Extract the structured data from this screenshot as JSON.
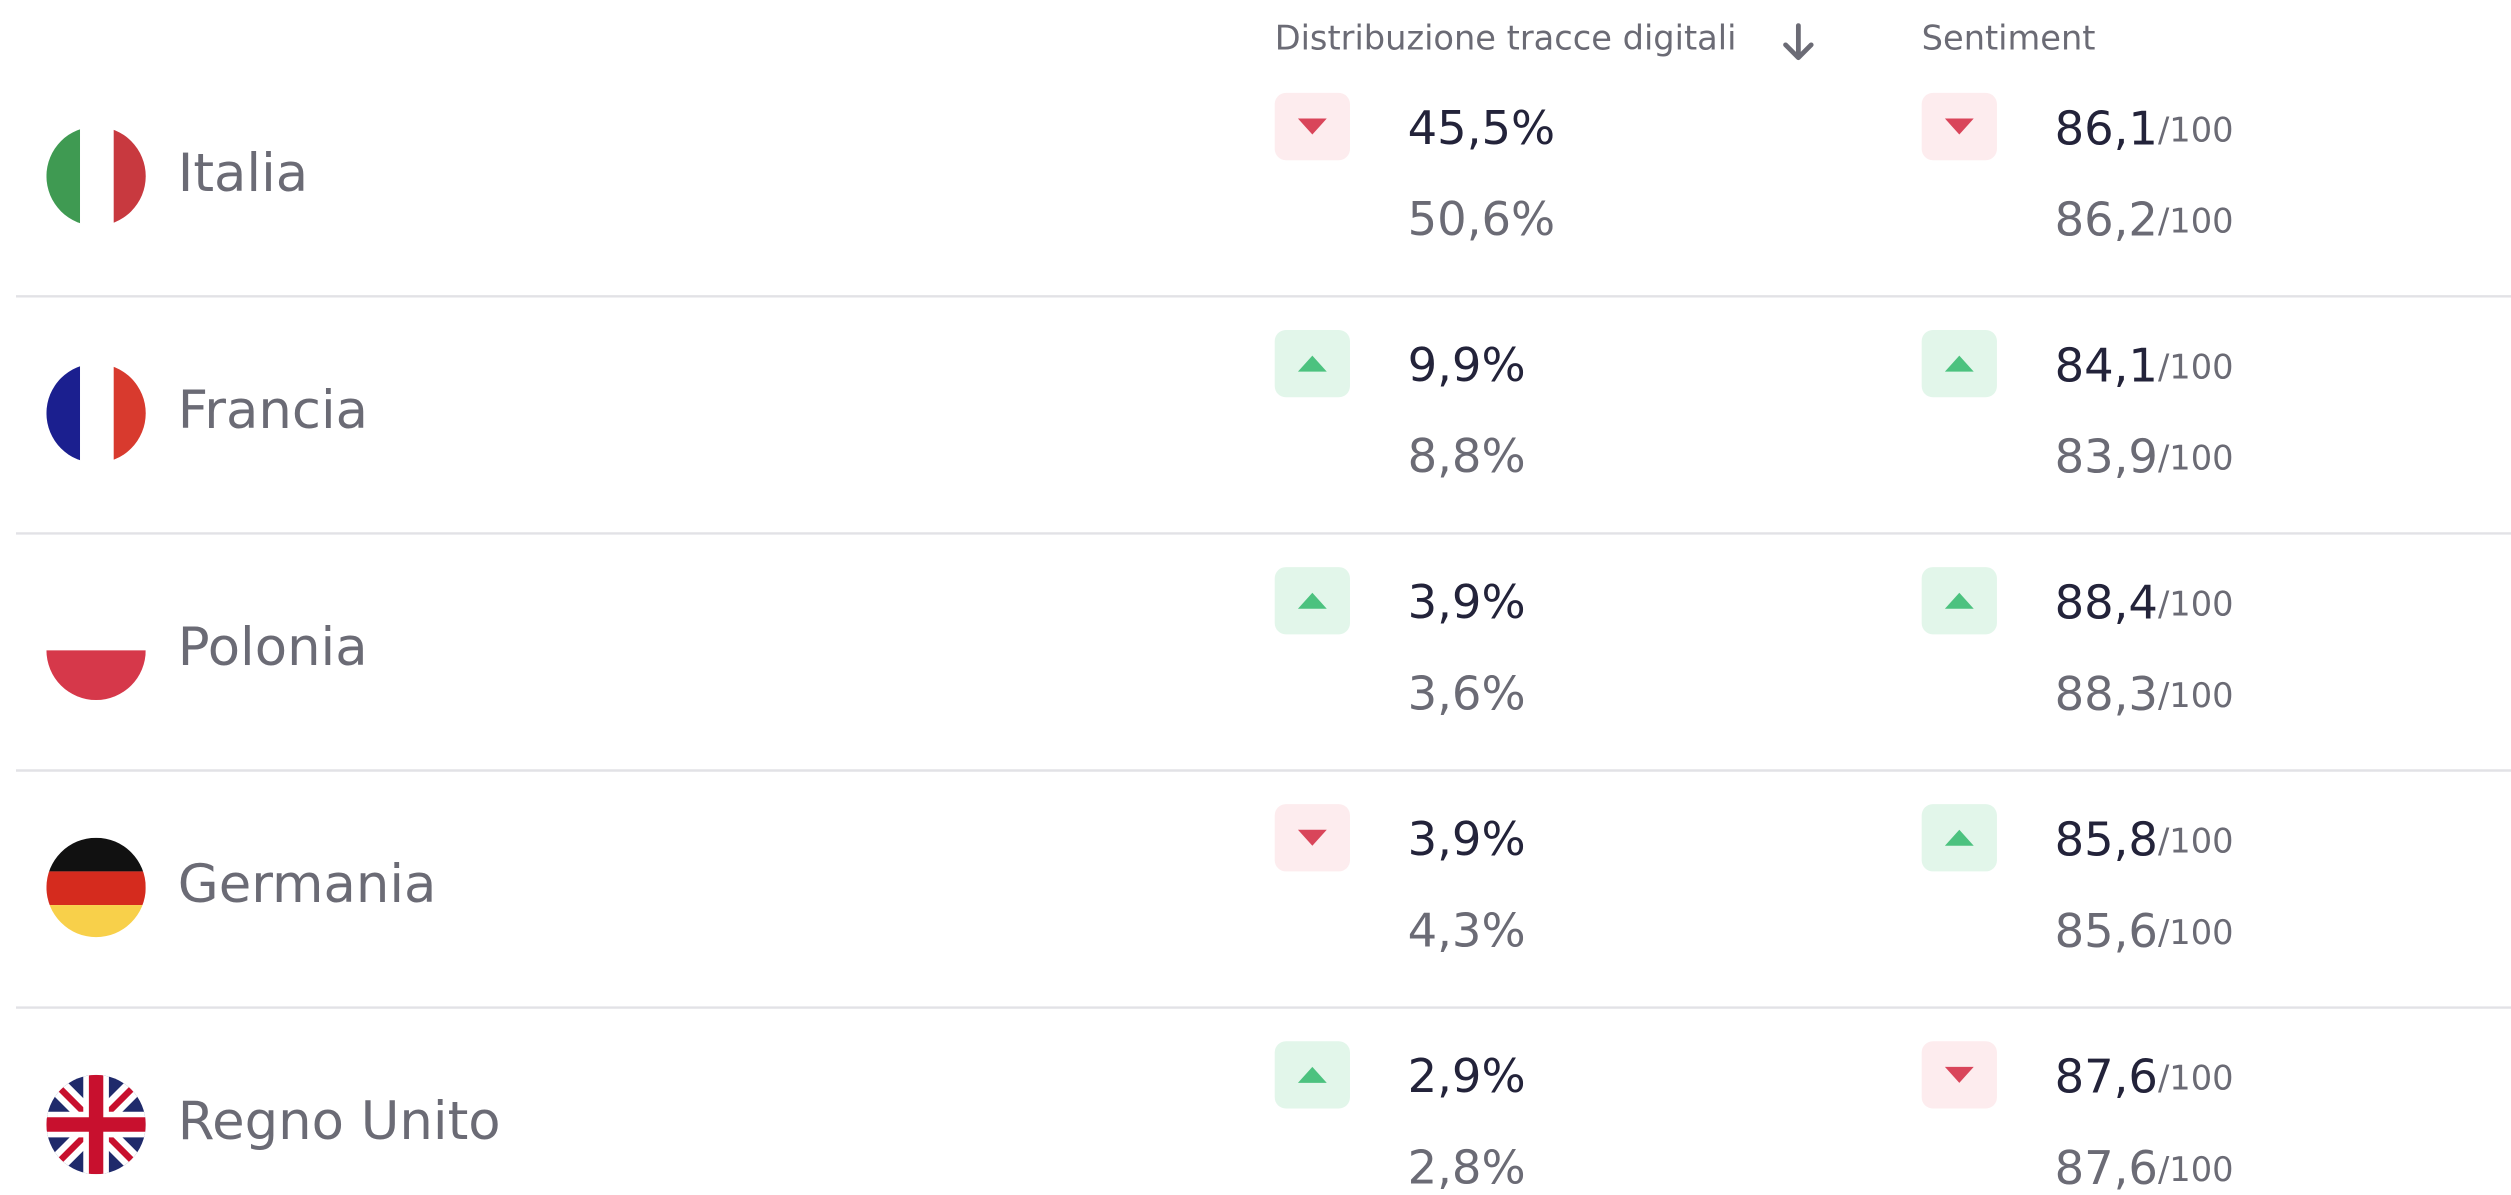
{
  "header": {
    "distribution": "Distribuzione tracce digitali",
    "sentiment": "Sentiment"
  },
  "rows": [
    {
      "country": "Italia",
      "distribution": {
        "trend": "down",
        "current": "45,5%",
        "previous": "50,6%"
      },
      "sentiment": {
        "trend": "down",
        "current": "86,1",
        "current_scale": "/100",
        "previous": "86,2",
        "previous_scale": "/100"
      }
    },
    {
      "country": "Francia",
      "distribution": {
        "trend": "up",
        "current": "9,9%",
        "previous": "8,8%"
      },
      "sentiment": {
        "trend": "up",
        "current": "84,1",
        "current_scale": "/100",
        "previous": "83,9",
        "previous_scale": "/100"
      }
    },
    {
      "country": "Polonia",
      "distribution": {
        "trend": "up",
        "current": "3,9%",
        "previous": "3,6%"
      },
      "sentiment": {
        "trend": "up",
        "current": "88,4",
        "current_scale": "/100",
        "previous": "88,3",
        "previous_scale": "/100"
      }
    },
    {
      "country": "Germania",
      "distribution": {
        "trend": "down",
        "current": "3,9%",
        "previous": "4,3%"
      },
      "sentiment": {
        "trend": "up",
        "current": "85,8",
        "current_scale": "/100",
        "previous": "85,6",
        "previous_scale": "/100"
      }
    },
    {
      "country": "Regno Unito",
      "distribution": {
        "trend": "up",
        "current": "2,9%",
        "previous": "2,8%"
      },
      "sentiment": {
        "trend": "down",
        "current": "87,6",
        "current_scale": "/100",
        "previous": "87,6",
        "previous_scale": "/100"
      }
    }
  ]
}
